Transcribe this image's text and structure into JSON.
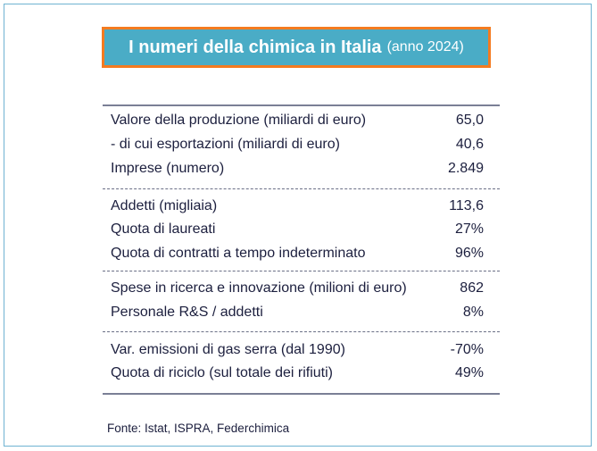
{
  "title": {
    "main": "I numeri della chimica in Italia",
    "sub": "(anno 2024)"
  },
  "groups": [
    [
      {
        "label": "Valore della produzione (miliardi di euro)",
        "value": "65,0"
      },
      {
        "label": "- di cui esportazioni (miliardi di euro)",
        "value": "40,6"
      },
      {
        "label": "Imprese (numero)",
        "value": "2.849"
      }
    ],
    [
      {
        "label": "Addetti (migliaia)",
        "value": "113,6"
      },
      {
        "label": "Quota di laureati",
        "value": "27%"
      },
      {
        "label": "Quota di contratti a tempo indeterminato",
        "value": "96%"
      }
    ],
    [
      {
        "label": "Spese in ricerca e innovazione (milioni di euro)",
        "value": "862"
      },
      {
        "label": "Personale R&S / addetti",
        "value": "8%"
      }
    ],
    [
      {
        "label": "Var. emissioni di gas serra (dal 1990)",
        "value": "-70%"
      },
      {
        "label": "Quota di riciclo (sul totale dei rifiuti)",
        "value": "49%"
      }
    ]
  ],
  "footer": "Fonte: Istat, ISPRA, Federchimica",
  "colors": {
    "title_bg": "#4aacc6",
    "title_border": "#f47b20",
    "frame": "#6fb3d2",
    "text": "#1c1f3e"
  }
}
